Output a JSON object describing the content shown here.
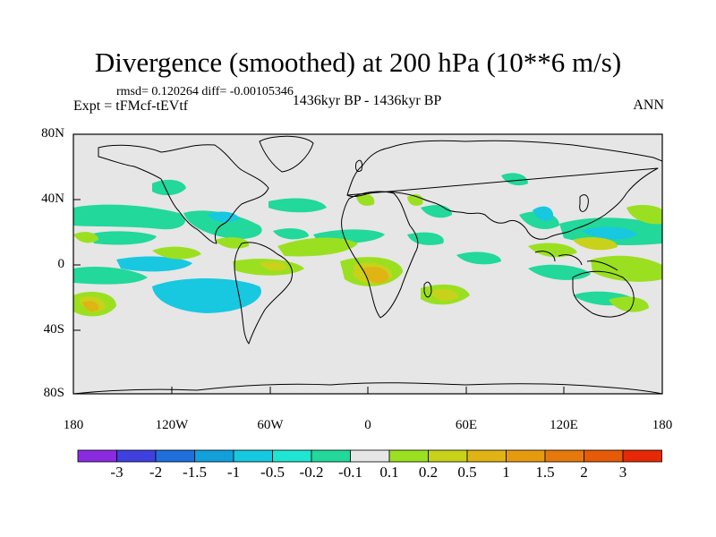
{
  "title": "Divergence (smoothed) at 200 hPa (10**6 m/s)",
  "stats": "rmsd= 0.120264 diff= -0.00105346",
  "experiment": "Expt = tFMcf-tEVtf",
  "period": "1436kyr BP - 1436kyr BP",
  "season": "ANN",
  "axes": {
    "lat_labels": [
      "80N",
      "40N",
      "0",
      "40S",
      "80S"
    ],
    "lon_labels": [
      "180",
      "120W",
      "60W",
      "0",
      "60E",
      "120E",
      "180"
    ]
  },
  "colorbar": {
    "labels": [
      "-3",
      "-2",
      "-1.5",
      "-1",
      "-0.5",
      "-0.2",
      "-0.1",
      "0.1",
      "0.2",
      "0.5",
      "1",
      "1.5",
      "2",
      "3"
    ],
    "colors": [
      "#8a2be2",
      "#4040e0",
      "#1f6fdc",
      "#12a0dc",
      "#17c8e0",
      "#1ee6d2",
      "#22d89a",
      "#e6e6e6",
      "#9be020",
      "#c8d21a",
      "#e0b414",
      "#e69a10",
      "#e6780c",
      "#e65a08",
      "#e62808"
    ]
  },
  "colors": {
    "background": "#e6e6e6",
    "coast": "#000000"
  }
}
